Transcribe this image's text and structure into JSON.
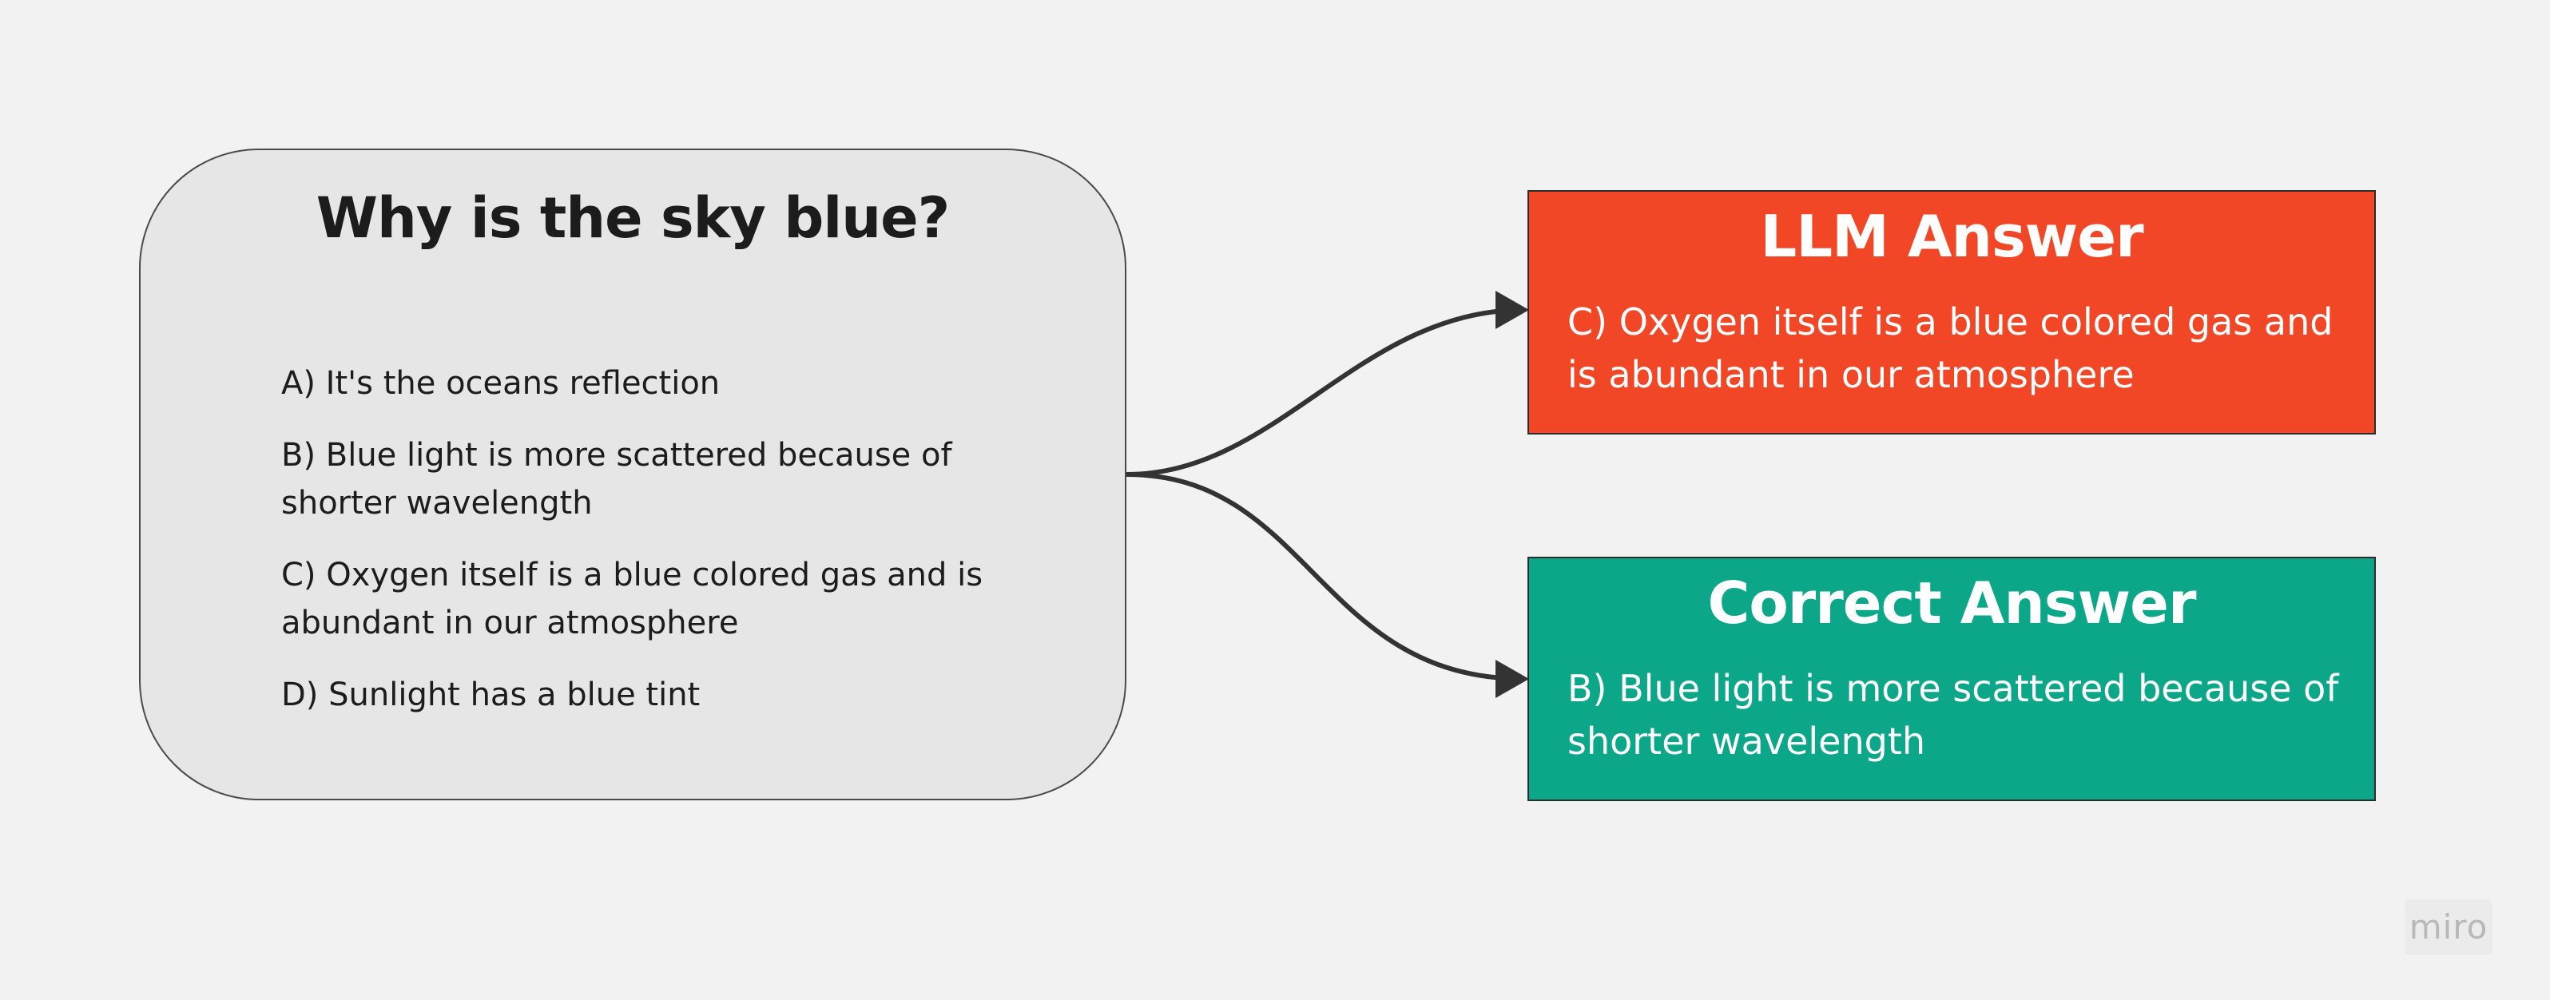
{
  "question": {
    "title": "Why is the sky blue?",
    "options": [
      "A) It's the oceans reflection",
      "B) Blue light is more scattered because of shorter wavelength",
      "C) Oxygen itself is a blue colored gas and is abundant in our atmosphere",
      "D) Sunlight has a blue tint"
    ]
  },
  "llm_answer": {
    "title": "LLM Answer",
    "text": "C) Oxygen itself is a blue colored gas and is abundant in our atmosphere",
    "color": "#f24726"
  },
  "correct_answer": {
    "title": "Correct Answer",
    "text": "B) Blue light is more scattered because of shorter wavelength",
    "color": "#0ca789"
  },
  "watermark": {
    "text": "miro"
  }
}
